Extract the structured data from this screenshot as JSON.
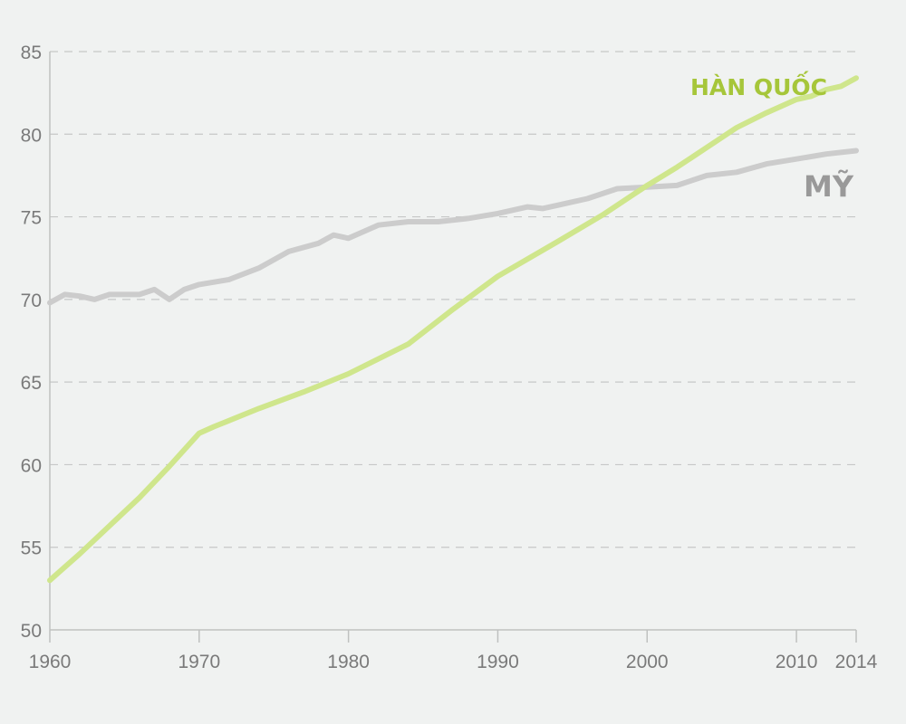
{
  "chart_data": {
    "type": "line",
    "title": "",
    "xlabel": "",
    "ylabel": "",
    "xlim": [
      1960,
      2014
    ],
    "ylim": [
      50,
      85
    ],
    "x_ticks": [
      1960,
      1970,
      1980,
      1990,
      2000,
      2010,
      2014
    ],
    "y_ticks": [
      50,
      55,
      60,
      65,
      70,
      75,
      80,
      85
    ],
    "grid": "horizontal-dashed",
    "series": [
      {
        "name": "HÀN QUỐC",
        "color": "#a6c63a",
        "line_color": "#cfe68c",
        "x": [
          1960,
          1962,
          1964,
          1966,
          1968,
          1970,
          1971,
          1974,
          1977,
          1980,
          1984,
          1987,
          1990,
          1994,
          1997,
          1999,
          2000,
          2002,
          2004,
          2006,
          2008,
          2010,
          2011,
          2012,
          2013,
          2014
        ],
        "y": [
          53.0,
          54.6,
          56.3,
          58.0,
          59.9,
          61.9,
          62.3,
          63.4,
          64.4,
          65.5,
          67.3,
          69.4,
          71.4,
          73.5,
          75.1,
          76.3,
          76.9,
          78.0,
          79.2,
          80.4,
          81.3,
          82.1,
          82.3,
          82.7,
          82.9,
          83.4
        ]
      },
      {
        "name": "MỸ",
        "color": "#999999",
        "line_color": "#cccccc",
        "x": [
          1960,
          1961,
          1962,
          1963,
          1964,
          1965,
          1966,
          1967,
          1968,
          1969,
          1970,
          1972,
          1974,
          1976,
          1978,
          1979,
          1980,
          1982,
          1984,
          1986,
          1988,
          1990,
          1992,
          1993,
          1994,
          1996,
          1998,
          2000,
          2002,
          2004,
          2006,
          2008,
          2010,
          2012,
          2014
        ],
        "y": [
          69.8,
          70.3,
          70.2,
          70.0,
          70.3,
          70.3,
          70.3,
          70.6,
          70.0,
          70.6,
          70.9,
          71.2,
          71.9,
          72.9,
          73.4,
          73.9,
          73.7,
          74.5,
          74.7,
          74.7,
          74.9,
          75.2,
          75.6,
          75.5,
          75.7,
          76.1,
          76.7,
          76.8,
          76.9,
          77.5,
          77.7,
          78.2,
          78.5,
          78.8,
          79.0
        ]
      }
    ]
  }
}
